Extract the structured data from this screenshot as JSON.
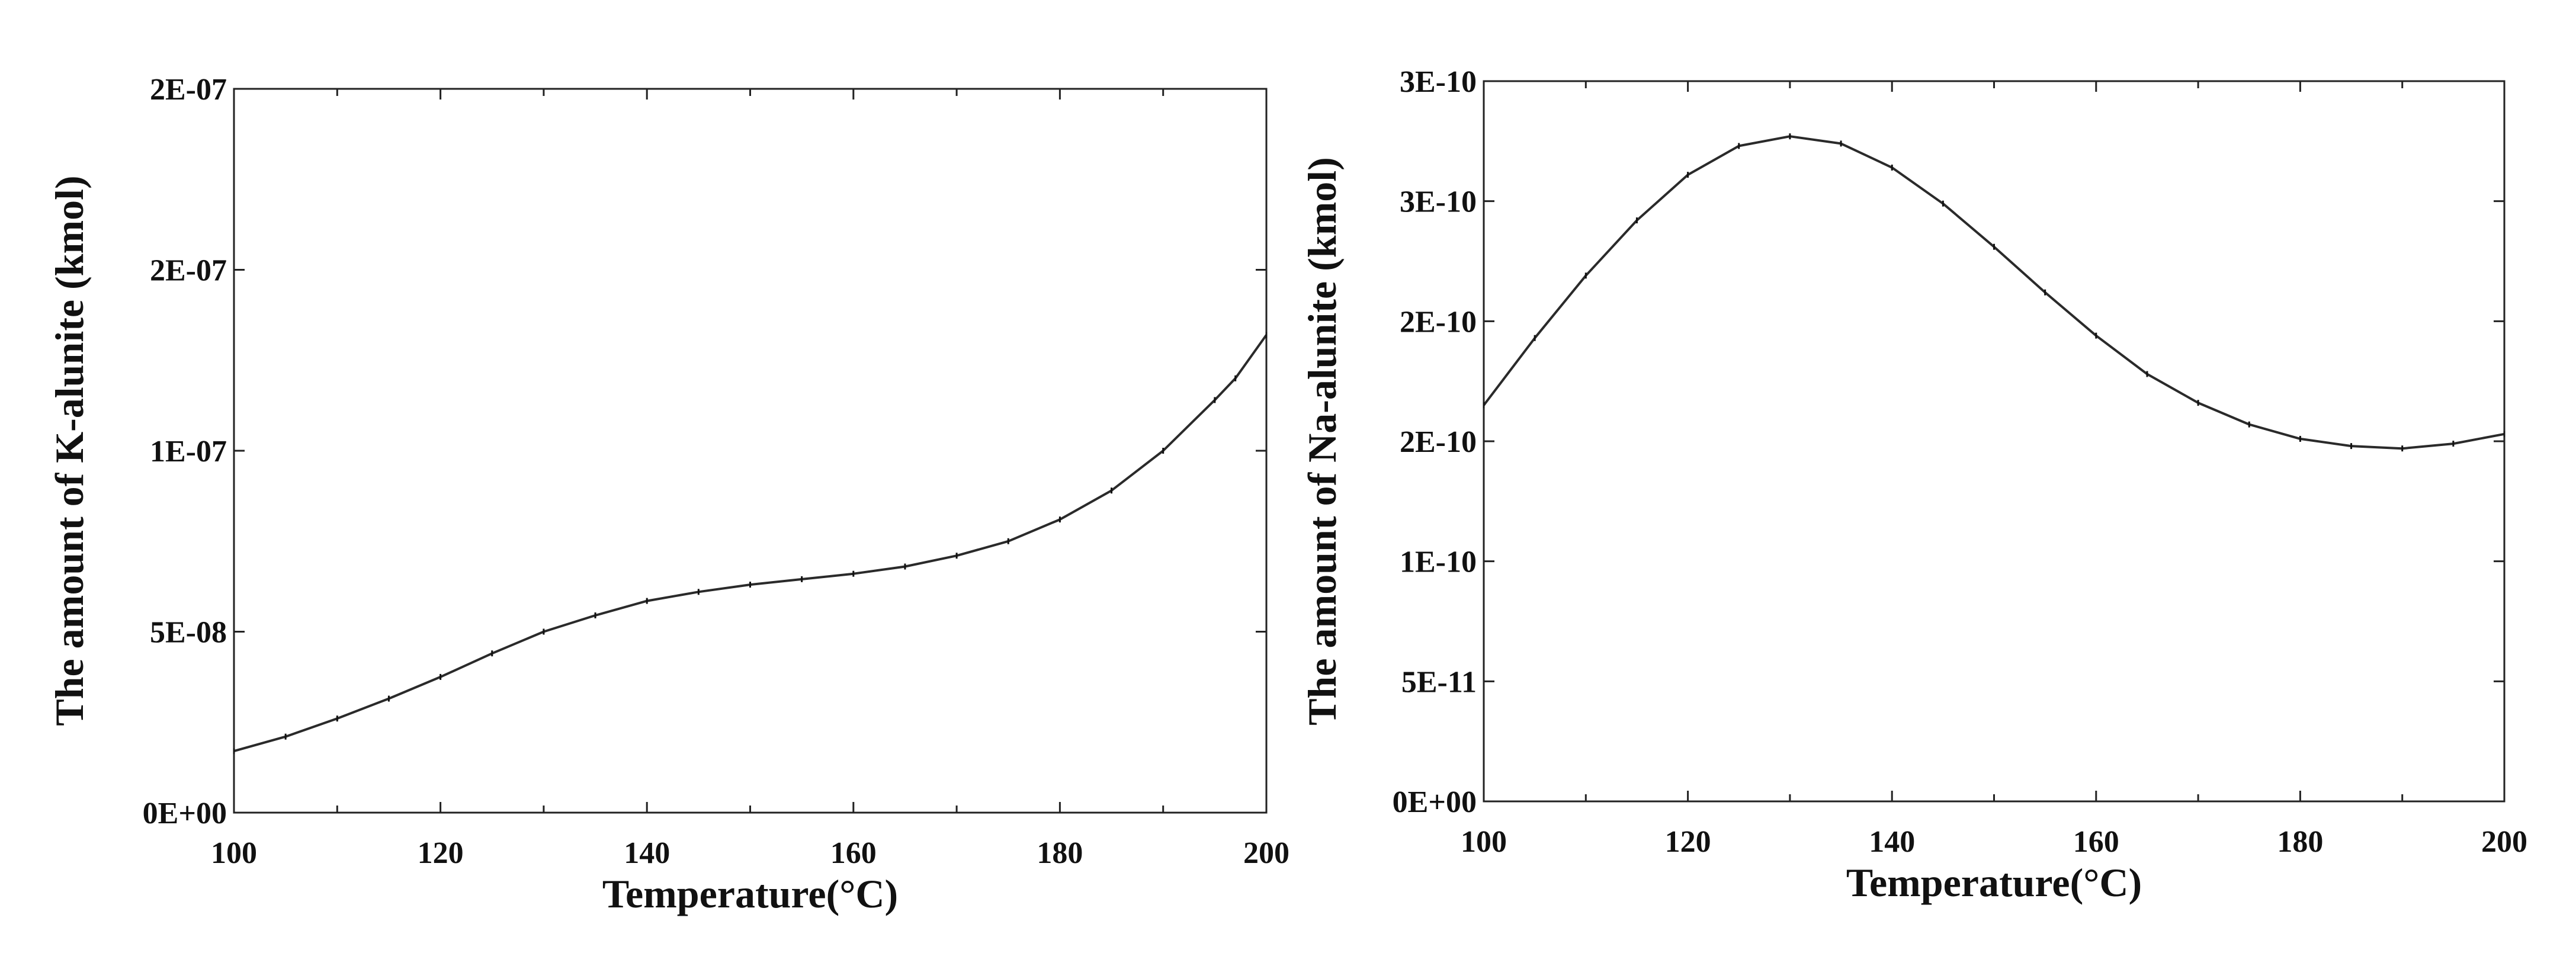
{
  "chart_data": [
    {
      "type": "line",
      "xlabel": "Temperature(°C)",
      "ylabel": "The amount of  K-alunite (kmol)",
      "xlim": [
        100,
        200
      ],
      "ylim": [
        0,
        2e-07
      ],
      "x_ticks": [
        100,
        120,
        140,
        160,
        180,
        200
      ],
      "x_tick_labels": [
        "100",
        "120",
        "140",
        "160",
        "180",
        "200"
      ],
      "y_ticks": [
        0,
        5e-08,
        1e-07,
        1.5e-07,
        2e-07
      ],
      "y_tick_labels": [
        "0E+00",
        "5E-08",
        "1E-07",
        "2E-07",
        "2E-07"
      ],
      "grid": false,
      "series": [
        {
          "x": [
            100,
            105,
            110,
            115,
            120,
            125,
            130,
            135,
            140,
            145,
            150,
            155,
            160,
            165,
            170,
            175,
            180,
            185,
            190,
            195,
            197,
            200
          ],
          "y": [
            1.7e-08,
            2.1e-08,
            2.6e-08,
            3.15e-08,
            3.75e-08,
            4.4e-08,
            5e-08,
            5.45e-08,
            5.85e-08,
            6.1e-08,
            6.3e-08,
            6.45e-08,
            6.6e-08,
            6.8e-08,
            7.1e-08,
            7.5e-08,
            8.1e-08,
            8.9e-08,
            1e-07,
            1.14e-07,
            1.2e-07,
            1.32e-07
          ]
        }
      ]
    },
    {
      "type": "line",
      "xlabel": "Temperature(°C)",
      "ylabel": "The amount of  Na-alunite (kmol)",
      "xlim": [
        100,
        200
      ],
      "ylim": [
        0,
        3e-10
      ],
      "x_ticks": [
        100,
        120,
        140,
        160,
        180,
        200
      ],
      "x_tick_labels": [
        "100",
        "120",
        "140",
        "160",
        "180",
        "200"
      ],
      "y_ticks": [
        0,
        5e-11,
        1e-10,
        1.5e-10,
        2e-10,
        2.5e-10,
        3e-10
      ],
      "y_tick_labels": [
        "0E+00",
        "5E-11",
        "1E-10",
        "2E-10",
        "2E-10",
        "3E-10",
        "3E-10"
      ],
      "grid": false,
      "series": [
        {
          "x": [
            100,
            105,
            110,
            115,
            120,
            125,
            130,
            135,
            140,
            145,
            150,
            155,
            160,
            165,
            170,
            175,
            180,
            185,
            190,
            195,
            200
          ],
          "y": [
            1.65e-10,
            1.93e-10,
            2.19e-10,
            2.42e-10,
            2.61e-10,
            2.73e-10,
            2.77e-10,
            2.74e-10,
            2.64e-10,
            2.49e-10,
            2.31e-10,
            2.12e-10,
            1.94e-10,
            1.78e-10,
            1.66e-10,
            1.57e-10,
            1.51e-10,
            1.48e-10,
            1.47e-10,
            1.49e-10,
            1.53e-10
          ]
        }
      ]
    }
  ]
}
